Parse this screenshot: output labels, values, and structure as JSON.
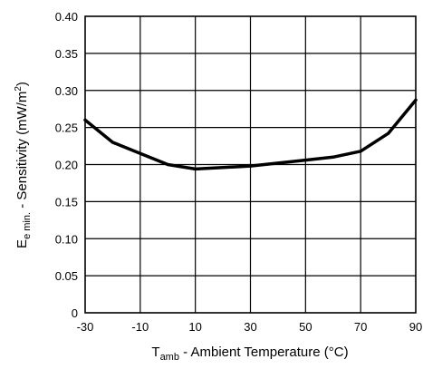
{
  "chart_data": {
    "type": "line",
    "title": "",
    "xlabel": {
      "base": "T",
      "sub": "amb",
      "rest": " - Ambient Temperature (°C)"
    },
    "ylabel": {
      "base": "E",
      "sub": "e min.",
      "rest": " - Sensitivity (mW/m",
      "sup": "2",
      "close": ")"
    },
    "xlim": [
      -30,
      90
    ],
    "ylim": [
      0,
      0.4
    ],
    "x_ticks": [
      "-30",
      "-10",
      "10",
      "30",
      "50",
      "70",
      "90"
    ],
    "y_ticks": [
      "0",
      "0.05",
      "0.10",
      "0.15",
      "0.20",
      "0.25",
      "0.30",
      "0.35",
      "0.40"
    ],
    "grid": true,
    "legend": "none",
    "line_color": "#000000",
    "series": [
      {
        "x": [
          -30,
          -20,
          -10,
          0,
          10,
          20,
          30,
          40,
          50,
          60,
          70,
          80,
          90
        ],
        "y": [
          0.26,
          0.23,
          0.215,
          0.2,
          0.194,
          0.196,
          0.198,
          0.202,
          0.206,
          0.21,
          0.218,
          0.242,
          0.287
        ]
      }
    ]
  }
}
